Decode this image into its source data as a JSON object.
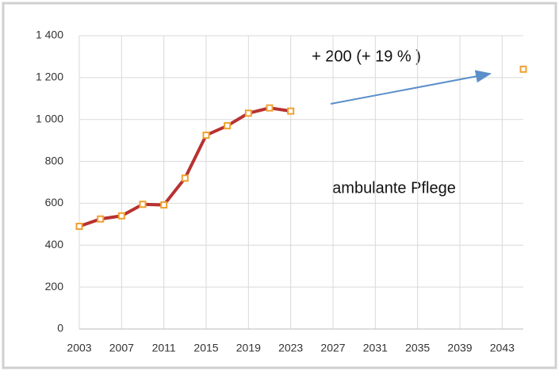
{
  "chart_data": {
    "type": "line",
    "xlim": [
      2003,
      2045
    ],
    "xticks": [
      2003,
      2007,
      2011,
      2015,
      2019,
      2023,
      2027,
      2031,
      2035,
      2039,
      2043
    ],
    "ylim": [
      0,
      1400
    ],
    "yticks": [
      0,
      200,
      400,
      600,
      800,
      {
        "value": 1000,
        "label": "1 000"
      },
      {
        "value": 1200,
        "label": "1 200"
      },
      {
        "value": 1400,
        "label": "1 400"
      }
    ],
    "grid": true,
    "series": [
      {
        "x": [
          2003,
          2005,
          2007,
          2009,
          2011,
          2013,
          2015,
          2017,
          2019,
          2021,
          2023
        ],
        "values": [
          490,
          525,
          540,
          595,
          592,
          720,
          925,
          970,
          1030,
          1055,
          1040
        ],
        "color": "#b83232",
        "marker_color": "#f0a030",
        "line": true
      },
      {
        "x": [
          2045
        ],
        "values": [
          1240
        ],
        "color": "#b83232",
        "marker_color": "#f0a030",
        "line": false
      }
    ],
    "annotations": [
      "+ 200 (+ 19 % )",
      "ambulante Pflege"
    ],
    "arrow_color": "#5b8fc9"
  }
}
